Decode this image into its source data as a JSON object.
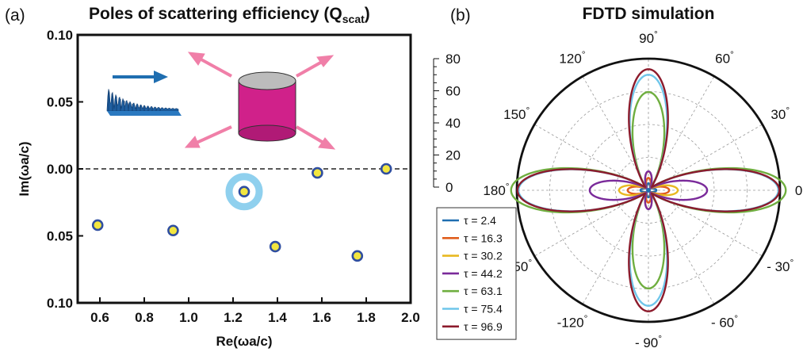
{
  "panels": {
    "a_label": "(a)",
    "b_label": "(b)"
  },
  "chart_data": [
    {
      "type": "scatter",
      "title": "Poles of scattering efficiency (Q",
      "title_sub": "scat",
      "title_close": ")",
      "xlabel": "Re(ωa/c)",
      "ylabel": "Im(ωa/c)",
      "xlim": [
        0.5,
        2.0
      ],
      "ylim": [
        -0.1,
        0.1
      ],
      "xticks": [
        "0.6",
        "0.8",
        "1.0",
        "1.2",
        "1.4",
        "1.6",
        "1.8",
        "2.0"
      ],
      "yticks": [
        "0.10",
        "0.05",
        "0.00",
        "0.05",
        "0.10"
      ],
      "points": [
        {
          "x": 0.59,
          "y": -0.042
        },
        {
          "x": 0.93,
          "y": -0.046
        },
        {
          "x": 1.25,
          "y": -0.017,
          "highlighted": true
        },
        {
          "x": 1.39,
          "y": -0.058
        },
        {
          "x": 1.58,
          "y": -0.003
        },
        {
          "x": 1.76,
          "y": -0.065
        },
        {
          "x": 1.89,
          "y": 0.0
        }
      ],
      "reference_line": {
        "y": 0.0,
        "style": "dashed"
      },
      "colors": {
        "point_fill": "#f2e640",
        "point_edge": "#2f4ea0",
        "highlight_ring": "#8fd0ee",
        "cylinder": "#d0218a",
        "arrows": "#f07fa8",
        "wave": "#1f5fa0"
      }
    },
    {
      "type": "polar",
      "title": "FDTD simulation",
      "radial_ticks": [
        "80",
        "60",
        "40",
        "20",
        "0"
      ],
      "rmax": 80,
      "angle_labels": [
        "90",
        "60",
        "30",
        "0",
        "- 30",
        "- 60",
        "- 90",
        "-120",
        "-150",
        "180",
        "150",
        "120"
      ],
      "degree_symbol": "°",
      "series": [
        {
          "name": "τ  = 2.4",
          "color": "#1f6eb0",
          "amp": 3.0,
          "ani": 0.1
        },
        {
          "name": "τ  = 16.3",
          "color": "#e05d1c",
          "amp": 8.5,
          "ani": 0.3
        },
        {
          "name": "τ  = 30.2",
          "color": "#e8b820",
          "amp": 13.0,
          "ani": 0.25
        },
        {
          "name": "τ  = 44.2",
          "color": "#7a2a9a",
          "amp": 22.0,
          "ani": 0.55
        },
        {
          "name": "τ  = 63.1",
          "color": "#6fae3f",
          "amp": 70.0,
          "ani": 0.17
        },
        {
          "name": "τ  = 75.4",
          "color": "#6fc6ea",
          "amp": 73.0,
          "ani": 0.06
        },
        {
          "name": "τ  = 96.9",
          "color": "#8c1b2c",
          "amp": 75.0,
          "ani": 0.04
        }
      ]
    }
  ]
}
